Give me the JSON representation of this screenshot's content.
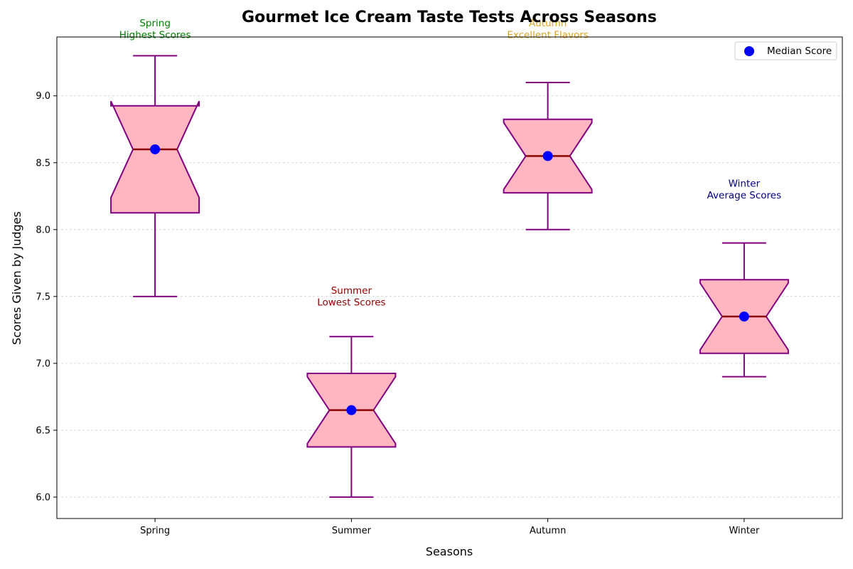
{
  "chart_data": {
    "type": "box",
    "title": "Gourmet Ice Cream Taste Tests Across Seasons",
    "xlabel": "Seasons",
    "ylabel": "Scores Given by Judges",
    "ylim": [
      5.84,
      9.44
    ],
    "yticks": [
      "6.0",
      "6.5",
      "7.0",
      "7.5",
      "8.0",
      "8.5",
      "9.0"
    ],
    "grid": "y-dashed",
    "legend": {
      "position": "top-right",
      "label": "Median Score"
    },
    "colors": {
      "box_fill": "#ffb6c1",
      "box_edge": "#800080",
      "median_line": "#8b0000",
      "median_marker": "#0000ff",
      "grid": "#cccccc"
    },
    "categories": [
      "Spring",
      "Summer",
      "Autumn",
      "Winter"
    ],
    "boxes": [
      {
        "label": "Spring",
        "whisker_low": 7.5,
        "q1": 8.125,
        "median": 8.6,
        "q3": 8.925,
        "whisker_high": 9.3,
        "notch_low": 8.24,
        "notch_high": 8.96
      },
      {
        "label": "Summer",
        "whisker_low": 6.0,
        "q1": 6.375,
        "median": 6.65,
        "q3": 6.925,
        "whisker_high": 7.2,
        "notch_low": 6.4,
        "notch_high": 6.9
      },
      {
        "label": "Autumn",
        "whisker_low": 8.0,
        "q1": 8.275,
        "median": 8.55,
        "q3": 8.825,
        "whisker_high": 9.1,
        "notch_low": 8.3,
        "notch_high": 8.8
      },
      {
        "label": "Winter",
        "whisker_low": 6.9,
        "q1": 7.075,
        "median": 7.35,
        "q3": 7.625,
        "whisker_high": 7.9,
        "notch_low": 7.1,
        "notch_high": 7.6
      }
    ],
    "annotations": [
      {
        "season": "Spring",
        "line1": "Spring",
        "line2": "Highest Scores",
        "color": "#008000",
        "value": 9.52
      },
      {
        "season": "Summer",
        "line1": "Summer",
        "line2": "Lowest Scores",
        "color": "#8b0000",
        "value": 7.52
      },
      {
        "season": "Autumn",
        "line1": "Autumn",
        "line2": "Excellent Flavors",
        "color": "#daa520",
        "value": 9.52
      },
      {
        "season": "Winter",
        "line1": "Winter",
        "line2": "Average Scores",
        "color": "#000080",
        "value": 8.32
      }
    ]
  }
}
